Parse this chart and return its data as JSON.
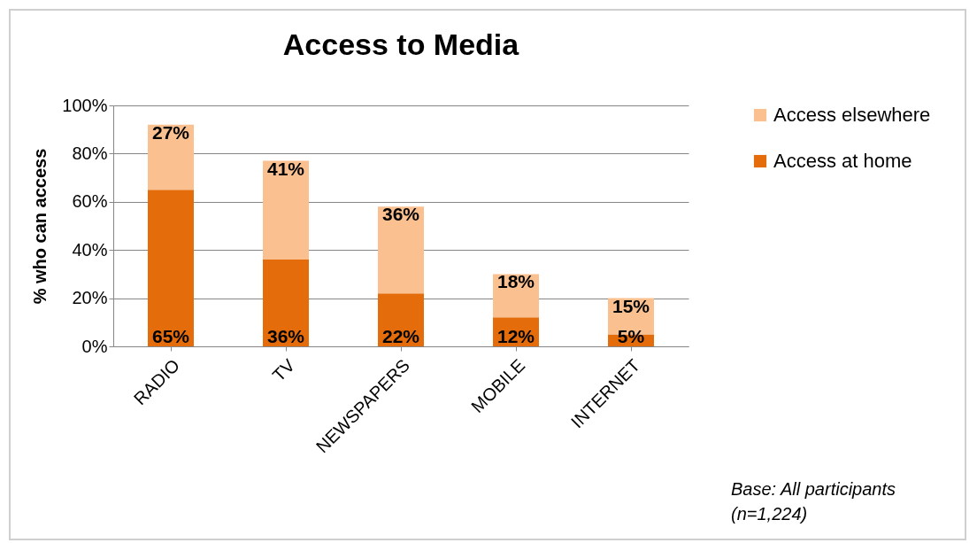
{
  "chart_data": {
    "type": "bar",
    "title": "Access to Media",
    "ylabel": "% who can access",
    "categories": [
      "RADIO",
      "TV",
      "NEWSPAPERS",
      "MOBILE",
      "INTERNET"
    ],
    "series": [
      {
        "name": "Access at home",
        "color": "#e46c0a",
        "values": [
          65,
          36,
          22,
          12,
          5
        ],
        "value_labels": [
          "65%",
          "36%",
          "22%",
          "12%",
          "5%"
        ]
      },
      {
        "name": "Access elsewhere",
        "color": "#fac090",
        "values": [
          27,
          41,
          36,
          18,
          15
        ],
        "value_labels": [
          "27%",
          "41%",
          "36%",
          "18%",
          "15%"
        ]
      }
    ],
    "stacked": true,
    "ylim": [
      0,
      100
    ],
    "yticks": [
      {
        "value": 0,
        "label": "0%"
      },
      {
        "value": 20,
        "label": "20%"
      },
      {
        "value": 40,
        "label": "40%"
      },
      {
        "value": 60,
        "label": "60%"
      },
      {
        "value": 80,
        "label": "80%"
      },
      {
        "value": 100,
        "label": "100%"
      }
    ],
    "grid": "y",
    "legend": "right",
    "annotations": [
      "Base: All participants (n=1,224)"
    ]
  }
}
